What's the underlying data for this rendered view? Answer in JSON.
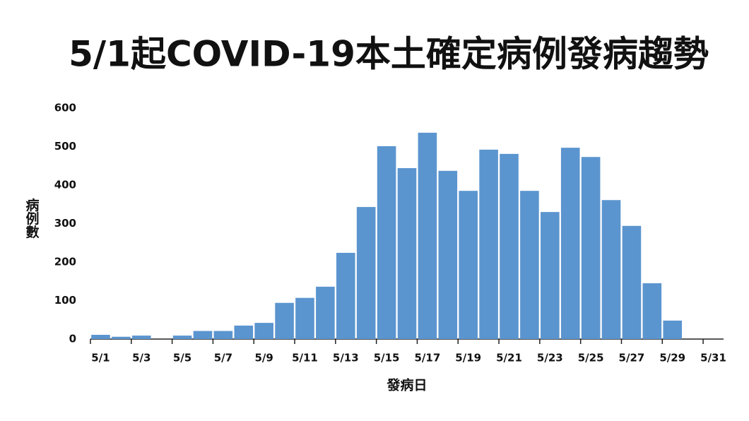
{
  "chart_data": {
    "type": "bar",
    "title": "5/1起COVID-19本土確定病例發病趨勢",
    "y_label": "病例數",
    "x_label": "發病日",
    "categories": [
      "5/1",
      null,
      "5/3",
      null,
      "5/5",
      null,
      "5/7",
      null,
      "5/9",
      null,
      "5/11",
      null,
      "5/13",
      null,
      "5/15",
      null,
      "5/17",
      null,
      "5/19",
      null,
      "5/21",
      null,
      "5/23",
      null,
      "5/25",
      null,
      "5/27",
      null,
      "5/29",
      null,
      "5/31"
    ],
    "values": [
      11,
      6,
      9,
      0,
      9,
      21,
      21,
      35,
      42,
      94,
      107,
      136,
      224,
      343,
      501,
      444,
      536,
      437,
      385,
      492,
      481,
      385,
      330,
      497,
      473,
      361,
      294,
      145,
      48,
      0,
      0
    ],
    "color": "#5b95cf",
    "ylim": [
      0,
      600
    ],
    "yticks": [
      0,
      100,
      200,
      300,
      400,
      500,
      600
    ],
    "grid": false
  }
}
